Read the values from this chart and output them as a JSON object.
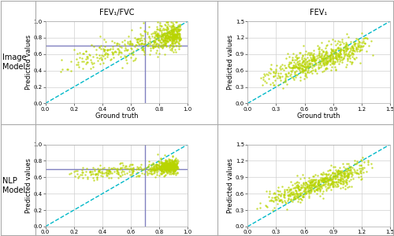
{
  "col_titles": [
    "FEV₁/FVC",
    "FEV₁"
  ],
  "row_labels": [
    [
      "Image",
      "Model"
    ],
    [
      "NLP",
      "Model"
    ]
  ],
  "fev_fvc_xlim": [
    0.0,
    1.0
  ],
  "fev_fvc_ylim": [
    0.0,
    1.0
  ],
  "fev1_xlim": [
    0.0,
    1.5
  ],
  "fev1_ylim": [
    0.0,
    1.5
  ],
  "fev_fvc_xticks": [
    0.0,
    0.2,
    0.4,
    0.6,
    0.8,
    1.0
  ],
  "fev_fvc_yticks": [
    0.0,
    0.2,
    0.4,
    0.6,
    0.8,
    1.0
  ],
  "fev1_xticks": [
    0.0,
    0.3,
    0.6,
    0.9,
    1.2,
    1.5
  ],
  "fev1_yticks": [
    0.0,
    0.3,
    0.6,
    0.9,
    1.2,
    1.5
  ],
  "scatter_color": "#b8d400",
  "scatter_alpha": 0.75,
  "scatter_size": 3,
  "diagonal_color": "#00b8c8",
  "diagonal_style": "--",
  "diagonal_lw": 1.0,
  "threshold_color": "#8080c0",
  "threshold_lw": 1.0,
  "threshold_fev_fvc": 0.7,
  "xlabel": "Ground truth",
  "ylabel": "Predicted values",
  "grid_color": "#d0d0d0",
  "grid_lw": 0.5,
  "tick_fs": 5,
  "axis_label_fs": 6,
  "row_label_fs": 7,
  "col_title_fs": 7
}
